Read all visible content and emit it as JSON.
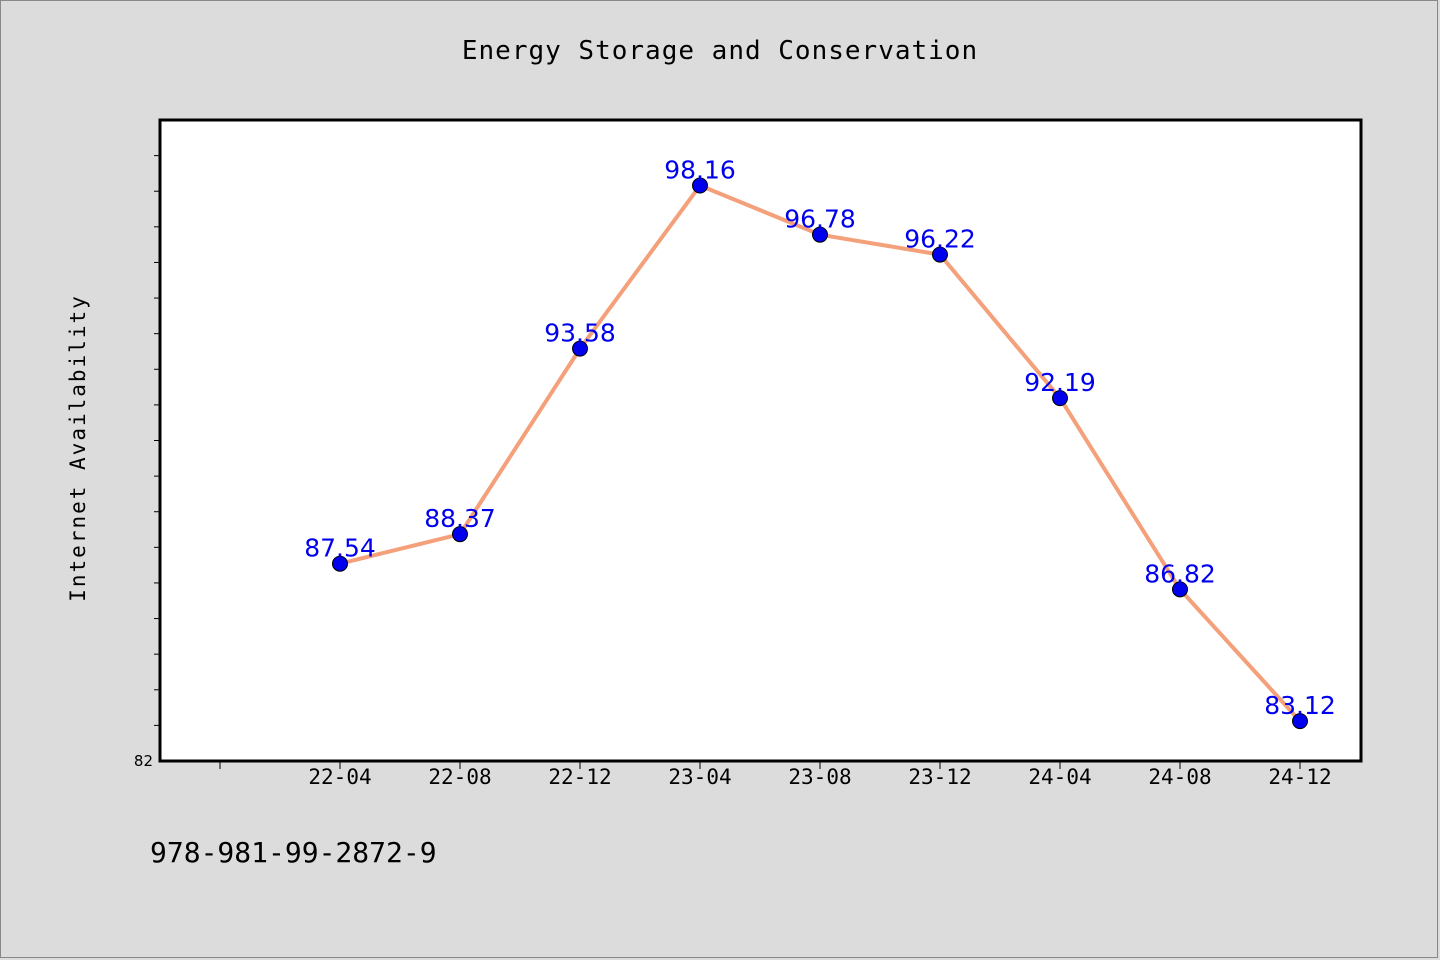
{
  "chart_data": {
    "type": "line",
    "title": "Energy Storage and Conservation",
    "ylabel": "Internet Availability",
    "xlabel": "",
    "categories": [
      "22-04",
      "22-08",
      "22-12",
      "23-04",
      "23-08",
      "23-12",
      "24-04",
      "24-08",
      "24-12"
    ],
    "series": [
      {
        "values": [
          87.54,
          88.37,
          93.58,
          98.16,
          96.78,
          96.22,
          92.19,
          86.82,
          83.12
        ]
      }
    ],
    "data_labels": [
      "87.54",
      "88.37",
      "93.58",
      "98.16",
      "96.78",
      "96.22",
      "92.19",
      "86.82",
      "83.12"
    ],
    "y_min_label": "82",
    "ylim": [
      82,
      100
    ],
    "grid": false,
    "line_color": "#f4a07a",
    "marker_color": "#0000ee",
    "label_color": "#0000ee"
  },
  "footer": {
    "isbn": "978-981-99-2872-9"
  }
}
